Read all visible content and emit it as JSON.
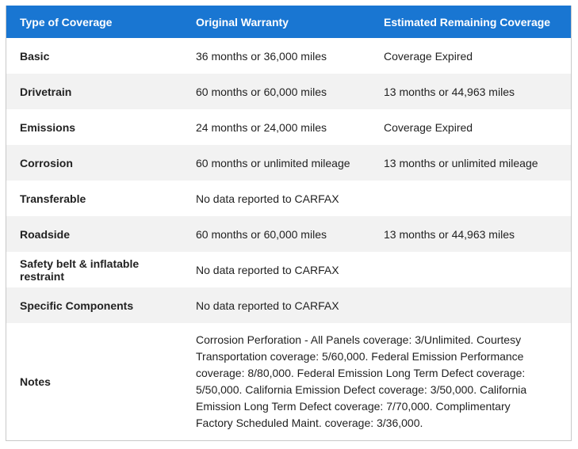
{
  "table": {
    "columns": [
      "Type of Coverage",
      "Original Warranty",
      "Estimated Remaining Coverage"
    ],
    "rows": [
      [
        "Basic",
        "36 months or 36,000 miles",
        "Coverage Expired"
      ],
      [
        "Drivetrain",
        "60 months or 60,000 miles",
        "13 months or 44,963 miles"
      ],
      [
        "Emissions",
        "24 months or 24,000 miles",
        "Coverage Expired"
      ],
      [
        "Corrosion",
        "60 months or unlimited mileage",
        "13 months or unlimited mileage"
      ],
      [
        "Transferable",
        "No data reported to CARFAX"
      ],
      [
        "Roadside",
        "60 months or 60,000 miles",
        "13 months or 44,963 miles"
      ],
      [
        "Safety belt & inflatable restraint",
        "No data reported to CARFAX"
      ],
      [
        "Specific Components",
        "No data reported to CARFAX"
      ]
    ],
    "notes": [
      "Notes",
      "Corrosion Perforation - All Panels coverage: 3/Unlimited. Courtesy Transportation coverage: 5/60,000. Federal Emission Performance coverage: 8/80,000. Federal Emission Long Term Defect coverage: 5/50,000. California Emission Defect coverage: 3/50,000. California Emission Long Term Defect coverage: 7/70,000. Complimentary Factory Scheduled Maint. coverage: 3/36,000."
    ]
  }
}
